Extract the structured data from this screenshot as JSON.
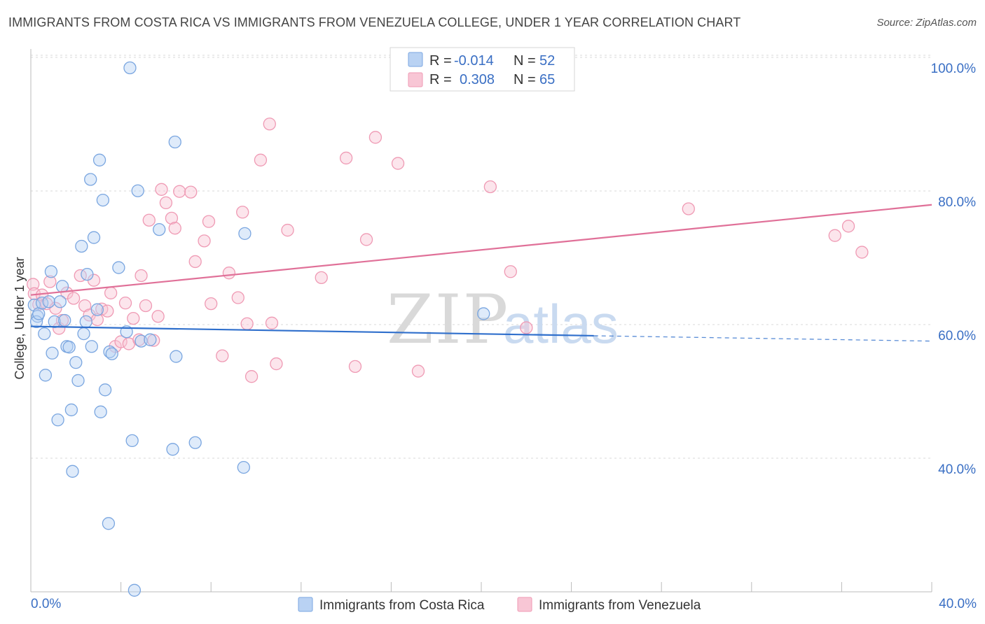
{
  "title": "IMMIGRANTS FROM COSTA RICA VS IMMIGRANTS FROM VENEZUELA COLLEGE, UNDER 1 YEAR CORRELATION CHART",
  "source": "Source: ZipAtlas.com",
  "watermark": {
    "part1": "ZIP",
    "part2": "atlas"
  },
  "colors": {
    "blue_fill": "#b9d2f3",
    "blue_stroke": "#7aa6e0",
    "blue_line": "#2f6fcc",
    "pink_fill": "#f8c6d5",
    "pink_stroke": "#ef9ab4",
    "pink_line": "#e07098",
    "tick_text": "#3a6fc4",
    "grid": "#d8d8d8"
  },
  "stats": {
    "label_r": "R =",
    "label_n": "N =",
    "rows": [
      {
        "r": "-0.014",
        "n": "52"
      },
      {
        "r": "0.308",
        "n": "65"
      }
    ]
  },
  "chart_data": {
    "type": "scatter",
    "title": "IMMIGRANTS FROM COSTA RICA VS IMMIGRANTS FROM VENEZUELA COLLEGE, UNDER 1 YEAR CORRELATION CHART",
    "xlabel": "",
    "ylabel": "College, Under 1 year",
    "xlim": [
      0,
      40
    ],
    "ylim": [
      20,
      103
    ],
    "x_tick_labels": [
      "0.0%",
      "40.0%"
    ],
    "y_ticks": [
      40,
      60,
      80,
      100
    ],
    "y_tick_labels": [
      "40.0%",
      "60.0%",
      "80.0%",
      "100.0%"
    ],
    "grid": true,
    "legend_position": "bottom",
    "series": [
      {
        "name": "Immigrants from Costa Rica",
        "color": "#7aa6e0",
        "trend": {
          "x": [
            0.0,
            25.0,
            40.0
          ],
          "y": [
            61.3,
            59.9,
            59.1
          ],
          "dashed_from_x": 25.0
        },
        "points": [
          [
            0.15,
            64.5
          ],
          [
            0.3,
            62.8
          ],
          [
            0.25,
            62.0
          ],
          [
            0.35,
            63.2
          ],
          [
            0.5,
            64.8
          ],
          [
            0.6,
            60.2
          ],
          [
            0.65,
            54.0
          ],
          [
            0.8,
            65.0
          ],
          [
            0.9,
            69.5
          ],
          [
            0.95,
            57.3
          ],
          [
            1.05,
            62.0
          ],
          [
            1.2,
            47.3
          ],
          [
            1.3,
            65.0
          ],
          [
            1.4,
            67.3
          ],
          [
            1.5,
            62.2
          ],
          [
            1.6,
            58.3
          ],
          [
            1.7,
            58.2
          ],
          [
            1.8,
            48.8
          ],
          [
            1.85,
            39.6
          ],
          [
            2.0,
            55.9
          ],
          [
            2.1,
            53.2
          ],
          [
            2.25,
            73.3
          ],
          [
            2.35,
            60.2
          ],
          [
            2.45,
            62.0
          ],
          [
            2.5,
            69.1
          ],
          [
            2.65,
            83.3
          ],
          [
            2.7,
            58.3
          ],
          [
            2.8,
            74.6
          ],
          [
            2.95,
            63.8
          ],
          [
            3.05,
            86.2
          ],
          [
            3.1,
            48.5
          ],
          [
            3.2,
            80.2
          ],
          [
            3.3,
            51.8
          ],
          [
            3.45,
            31.8
          ],
          [
            3.5,
            57.5
          ],
          [
            3.6,
            57.2
          ],
          [
            3.9,
            70.1
          ],
          [
            4.25,
            60.5
          ],
          [
            4.4,
            100.0
          ],
          [
            4.5,
            44.2
          ],
          [
            4.6,
            21.8
          ],
          [
            4.75,
            81.6
          ],
          [
            4.9,
            59.1
          ],
          [
            5.3,
            59.3
          ],
          [
            5.7,
            75.8
          ],
          [
            6.3,
            42.9
          ],
          [
            6.4,
            88.9
          ],
          [
            6.45,
            56.8
          ],
          [
            7.3,
            43.9
          ],
          [
            9.5,
            75.2
          ],
          [
            9.45,
            40.2
          ],
          [
            20.1,
            63.2
          ]
        ]
      },
      {
        "name": "Immigrants from Venezuela",
        "color": "#ef9ab4",
        "trend": {
          "x": [
            0.0,
            40.0
          ],
          "y": [
            66.0,
            79.5
          ]
        },
        "points": [
          [
            0.1,
            67.6
          ],
          [
            0.15,
            66.2
          ],
          [
            0.35,
            64.6
          ],
          [
            0.5,
            66.0
          ],
          [
            0.7,
            64.7
          ],
          [
            0.85,
            68.0
          ],
          [
            1.1,
            64.0
          ],
          [
            1.25,
            61.0
          ],
          [
            1.4,
            62.2
          ],
          [
            1.6,
            66.3
          ],
          [
            1.9,
            65.5
          ],
          [
            2.2,
            68.9
          ],
          [
            2.4,
            64.4
          ],
          [
            2.6,
            63.0
          ],
          [
            2.8,
            68.2
          ],
          [
            2.95,
            62.3
          ],
          [
            3.15,
            63.9
          ],
          [
            3.4,
            63.6
          ],
          [
            3.55,
            66.3
          ],
          [
            3.75,
            58.3
          ],
          [
            4.0,
            59.0
          ],
          [
            4.2,
            64.8
          ],
          [
            4.35,
            58.7
          ],
          [
            4.55,
            62.5
          ],
          [
            4.8,
            59.3
          ],
          [
            4.9,
            68.9
          ],
          [
            5.1,
            64.4
          ],
          [
            5.25,
            77.2
          ],
          [
            5.45,
            59.2
          ],
          [
            5.65,
            62.8
          ],
          [
            5.8,
            81.8
          ],
          [
            6.0,
            79.8
          ],
          [
            6.25,
            77.5
          ],
          [
            6.4,
            76.0
          ],
          [
            6.6,
            81.5
          ],
          [
            7.1,
            81.4
          ],
          [
            7.3,
            71.0
          ],
          [
            7.7,
            74.1
          ],
          [
            7.9,
            77.0
          ],
          [
            8.0,
            64.7
          ],
          [
            8.5,
            56.9
          ],
          [
            8.8,
            69.3
          ],
          [
            9.2,
            65.6
          ],
          [
            9.4,
            78.4
          ],
          [
            9.6,
            61.7
          ],
          [
            9.8,
            53.8
          ],
          [
            10.2,
            86.2
          ],
          [
            10.6,
            91.6
          ],
          [
            10.7,
            61.8
          ],
          [
            10.9,
            55.7
          ],
          [
            11.4,
            75.7
          ],
          [
            12.9,
            68.6
          ],
          [
            14.0,
            86.5
          ],
          [
            14.4,
            55.3
          ],
          [
            14.9,
            74.3
          ],
          [
            15.3,
            89.6
          ],
          [
            16.3,
            85.7
          ],
          [
            17.2,
            54.6
          ],
          [
            20.4,
            82.2
          ],
          [
            21.3,
            69.5
          ],
          [
            22.0,
            61.1
          ],
          [
            29.2,
            78.9
          ],
          [
            35.7,
            74.9
          ],
          [
            36.3,
            76.3
          ],
          [
            36.9,
            72.4
          ]
        ]
      }
    ]
  }
}
